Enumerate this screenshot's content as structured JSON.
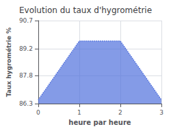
{
  "chart_data": {
    "type": "area",
    "title": "Evolution du taux d'hygrométrie",
    "xlabel": "heure par heure",
    "ylabel": "Taux hygrométrie %",
    "x": [
      0,
      1,
      2,
      3
    ],
    "values": [
      86.5,
      89.62,
      89.62,
      86.5
    ],
    "xlim": [
      0,
      3
    ],
    "xticks": [
      0,
      1,
      2,
      3
    ],
    "ylim": [
      86.3,
      90.7
    ],
    "yticks": [
      86.3,
      87.8,
      89.2,
      90.7
    ],
    "grid": true,
    "line_style": "dotted"
  }
}
